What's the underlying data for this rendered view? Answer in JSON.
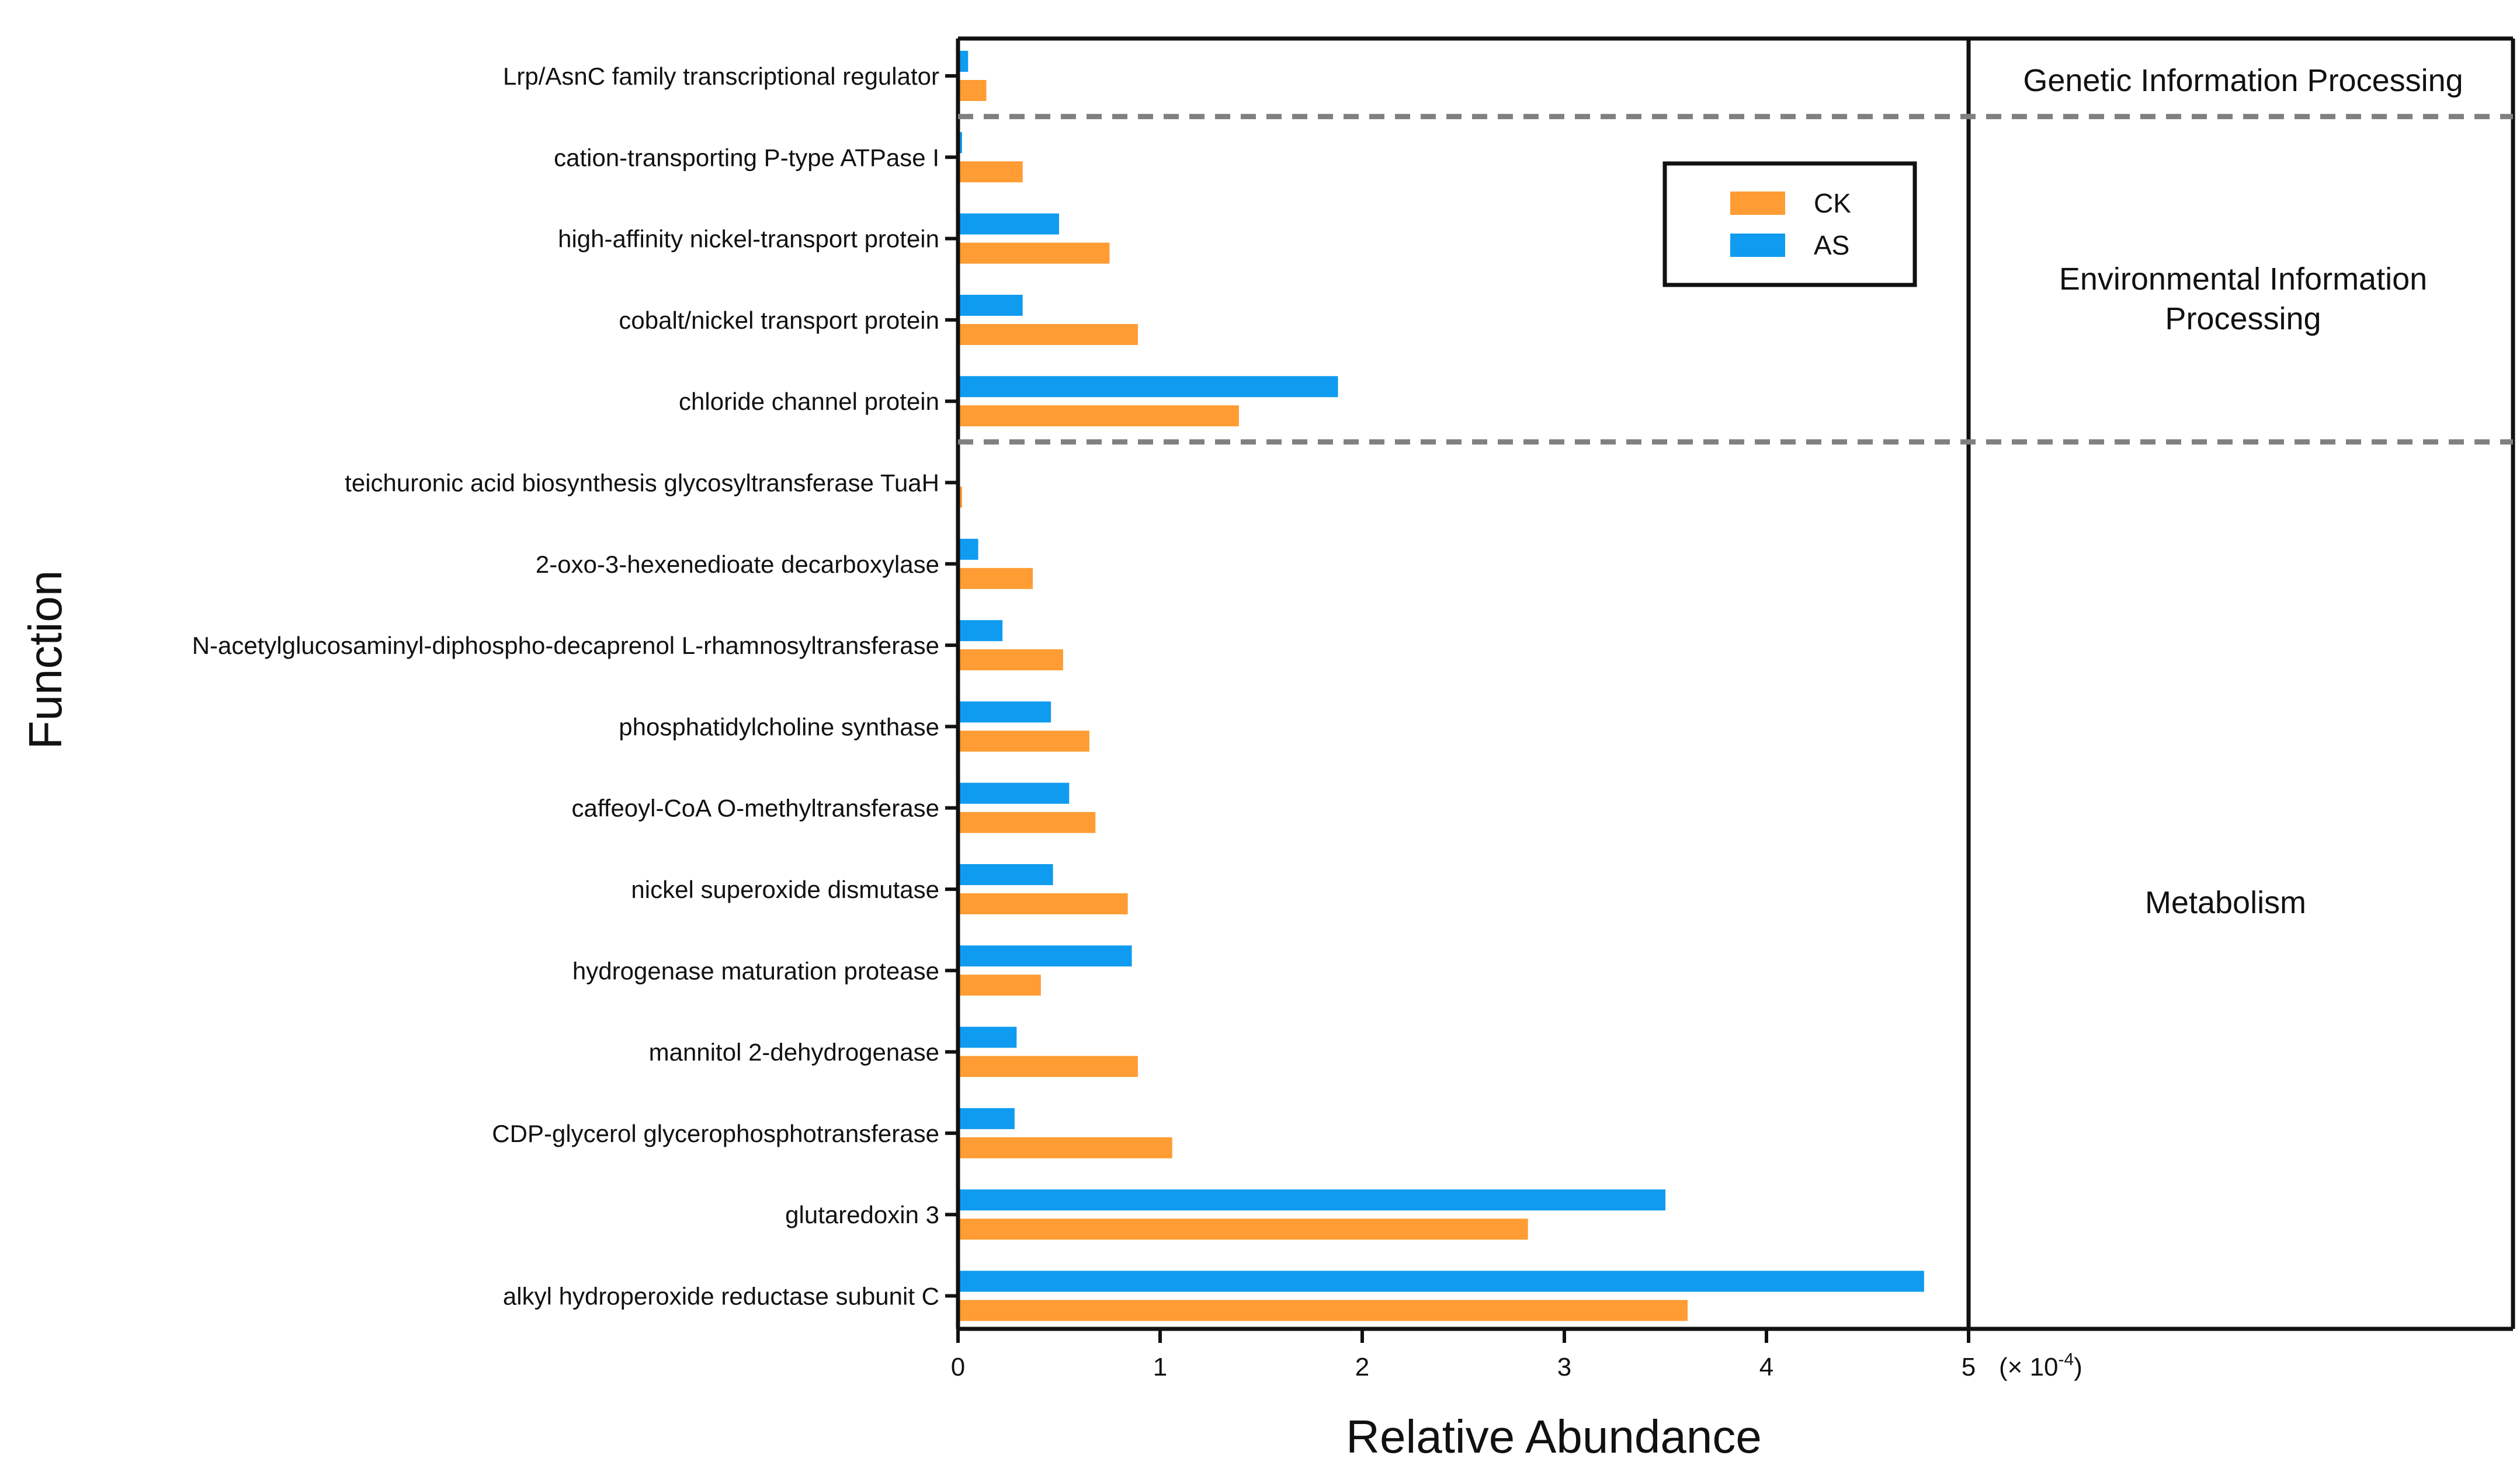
{
  "chart_data": {
    "type": "bar",
    "orientation": "horizontal",
    "categories": [
      "Lrp/AsnC family transcriptional regulator",
      "cation-transporting P-type ATPase I",
      "high-affinity nickel-transport protein",
      "cobalt/nickel transport protein",
      "chloride channel protein",
      "teichuronic acid biosynthesis glycosyltransferase TuaH",
      "2-oxo-3-hexenedioate decarboxylase",
      "N-acetylglucosaminyl-diphospho-decaprenol L-rhamnosyltransferase",
      "phosphatidylcholine synthase",
      "caffeoyl-CoA O-methyltransferase",
      "nickel superoxide dismutase",
      "hydrogenase maturation protease",
      "mannitol 2-dehydrogenase",
      "CDP-glycerol glycerophosphotransferase",
      "glutaredoxin 3",
      "alkyl hydroperoxide reductase subunit C"
    ],
    "series": [
      {
        "name": "AS",
        "color": "#0f9bf0",
        "values": [
          0.05,
          0.02,
          0.5,
          0.32,
          1.88,
          0.0,
          0.1,
          0.22,
          0.46,
          0.55,
          0.47,
          0.86,
          0.29,
          0.28,
          3.5,
          4.78
        ]
      },
      {
        "name": "CK",
        "color": "#ff9c33",
        "values": [
          0.14,
          0.32,
          0.75,
          0.89,
          1.39,
          0.02,
          0.37,
          0.52,
          0.65,
          0.68,
          0.84,
          0.41,
          0.89,
          1.06,
          2.82,
          3.61
        ]
      }
    ],
    "xlabel": "Relative Abundance",
    "ylabel": "Function",
    "xlim": [
      0,
      5
    ],
    "xticks": [
      "0",
      "1",
      "2",
      "3",
      "4",
      "5"
    ],
    "x_multiplier": "(× 10",
    "x_multiplier_exp": "-4",
    "x_multiplier_close": ")",
    "legend": {
      "position": "top-right",
      "order": [
        "CK",
        "AS"
      ]
    },
    "groups": [
      {
        "label_lines": [
          "Genetic Information Processing"
        ],
        "start": 0,
        "end": 0
      },
      {
        "label_lines": [
          "Environmental Information",
          "Processing"
        ],
        "start": 1,
        "end": 4
      },
      {
        "label_lines": [
          "Metabolism"
        ],
        "start": 5,
        "end": 15
      }
    ]
  }
}
